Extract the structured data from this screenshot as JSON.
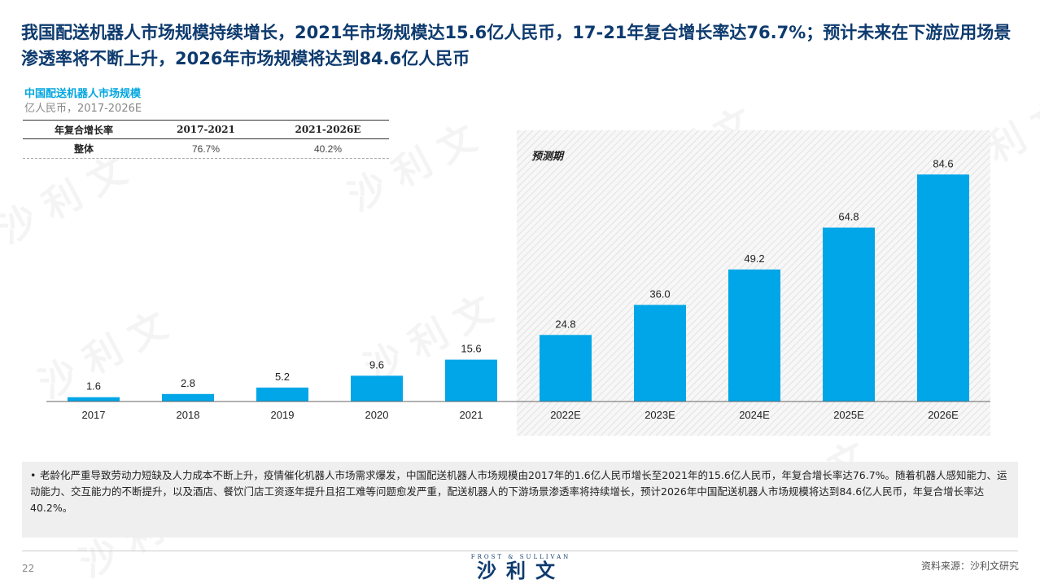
{
  "title": "我国配送机器人市场规模持续增长，2021年市场规模达15.6亿人民币，17-21年复合增长率达76.7%；预计未来在下游应用场景渗透率将不断上升，2026年市场规模将达到84.6亿人民币",
  "chart_data": {
    "type": "bar",
    "title": "中国配送机器人市场规模",
    "subtitle": "亿人民币，2017-2026E",
    "categories": [
      "2017",
      "2018",
      "2019",
      "2020",
      "2021",
      "2022E",
      "2023E",
      "2024E",
      "2025E",
      "2026E"
    ],
    "values": [
      1.6,
      2.8,
      5.2,
      9.6,
      15.6,
      24.8,
      36.0,
      49.2,
      64.8,
      84.6
    ],
    "value_labels": [
      "1.6",
      "2.8",
      "5.2",
      "9.6",
      "15.6",
      "24.8",
      "36.0",
      "49.2",
      "64.8",
      "84.6"
    ],
    "forecast_start_index": 5,
    "forecast_label": "预测期",
    "ylim": [
      0,
      95
    ],
    "bar_color": "#00a6e8",
    "grid": false
  },
  "cagr_table": {
    "headers": [
      "年复合增长率",
      "2017-2021",
      "2021-2026E"
    ],
    "rows": [
      [
        "整体",
        "76.7%",
        "40.2%"
      ]
    ]
  },
  "note": "老龄化严重导致劳动力短缺及人力成本不断上升，疫情催化机器人市场需求爆发，中国配送机器人市场规模由2017年的1.6亿人民币增长至2021年的15.6亿人民币，年复合增长率达76.7%。随着机器人感知能力、运动能力、交互能力的不断提升，以及酒店、餐饮门店工资逐年提升且招工难等问题愈发严重，配送机器人的下游场景渗透率将持续增长，预计2026年中国配送机器人市场规模将达到84.6亿人民币，年复合增长率达40.2%。",
  "note_bullet": "•",
  "footer": {
    "page_number": "22",
    "logo_en": "FROST & SULLIVAN",
    "logo_cn": "沙利文",
    "source": "资料来源：沙利文研究"
  },
  "watermark_text": "沙 利 文"
}
